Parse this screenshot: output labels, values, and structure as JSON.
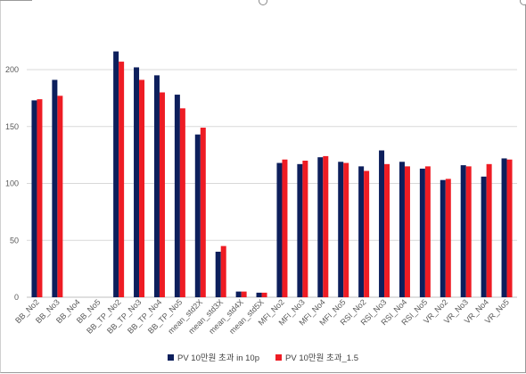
{
  "chart_data": {
    "type": "bar",
    "categories": [
      "BB_No2",
      "BB_No3",
      "BB_No4",
      "BB_No5",
      "BB_TP_No2",
      "BB_TP_No3",
      "BB_TP_No4",
      "BB_TP_No5",
      "mean_std2X",
      "mean_std3X",
      "mean_std4X",
      "mean_std5X",
      "MFI_No2",
      "MFI_No3",
      "MFI_No4",
      "MFI_No5",
      "RSI_No2",
      "RSI_No3",
      "RSI_No4",
      "RSI_No5",
      "VR_No2",
      "VR_No3",
      "VR_No4",
      "VR_No5"
    ],
    "series": [
      {
        "name": "PV 10만원 초과 in 10p",
        "color": "#0d1f5c",
        "values": [
          173,
          191,
          null,
          null,
          216,
          202,
          195,
          178,
          143,
          40,
          5,
          4,
          118,
          117,
          123,
          119,
          115,
          129,
          119,
          113,
          103,
          116,
          106,
          122
        ]
      },
      {
        "name": "PV 10만원 초과_1.5",
        "color": "#ee1c24",
        "values": [
          174,
          177,
          null,
          null,
          207,
          191,
          180,
          166,
          149,
          45,
          5,
          4,
          121,
          120,
          124,
          118,
          111,
          117,
          115,
          115,
          104,
          115,
          117,
          121
        ]
      }
    ],
    "yticks": [
      0,
      50,
      100,
      150,
      200
    ],
    "ylim": [
      0,
      250
    ],
    "grid": true,
    "legend_position": "bottom"
  }
}
